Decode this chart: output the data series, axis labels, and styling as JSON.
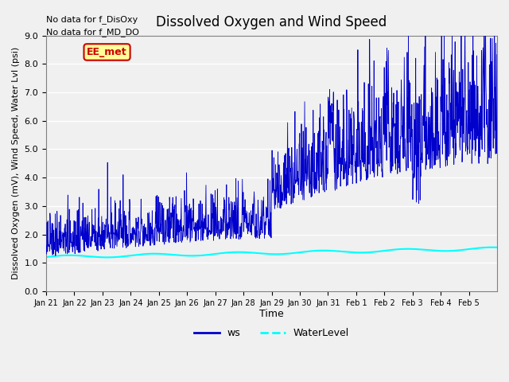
{
  "title": "Dissolved Oxygen and Wind Speed",
  "ylabel": "Dissolved Oxygen (mV), Wind Speed, Water Lvl (psi)",
  "xlabel": "Time",
  "annotations": [
    "No data for f_DisOxy",
    "No data for f_MD_DO"
  ],
  "label_tag": "EE_met",
  "ylim": [
    0.0,
    9.0
  ],
  "yticks": [
    0.0,
    1.0,
    2.0,
    3.0,
    4.0,
    5.0,
    6.0,
    7.0,
    8.0,
    9.0
  ],
  "xtick_labels": [
    "Jan 21",
    "Jan 22",
    "Jan 23",
    "Jan 24",
    "Jan 25",
    "Jan 26",
    "Jan 27",
    "Jan 28",
    "Jan 29",
    "Jan 30",
    "Jan 31",
    "Feb 1",
    "Feb 2",
    "Feb 3",
    "Feb 4",
    "Feb 5"
  ],
  "ws_color": "#0000cc",
  "water_color": "#00ffff",
  "bg_color": "#e8e8e8",
  "plot_bg_color": "#f0f0f0",
  "legend_ws_label": "ws",
  "legend_water_label": "WaterLevel",
  "tag_bg": "#ffff99",
  "tag_border": "#cc0000",
  "tag_text_color": "#cc0000"
}
